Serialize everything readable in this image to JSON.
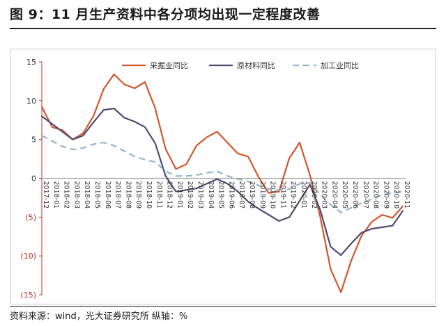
{
  "figure": {
    "title": "图 9：11 月生产资料中各分项均出现一定程度改善",
    "source": "资料来源：wind，光大证券研究所   纵轴：%"
  },
  "chart_data": {
    "type": "line",
    "title": "",
    "xlabel": "",
    "ylabel": "",
    "ylim": [
      -15,
      15
    ],
    "yticks": [
      15,
      10,
      5,
      0,
      -5,
      -10,
      -15
    ],
    "ytick_labels": [
      "15",
      "10",
      "5",
      "0",
      "(5)",
      "(10)",
      "(15)"
    ],
    "legend_position": "top",
    "categories": [
      "2017-12",
      "2018-01",
      "2018-02",
      "2018-03",
      "2018-04",
      "2018-05",
      "2018-06",
      "2018-07",
      "2018-08",
      "2018-09",
      "2018-10",
      "2018-11",
      "2018-12",
      "2019-01",
      "2019-02",
      "2019-03",
      "2019-04",
      "2019-05",
      "2019-06",
      "2019-07",
      "2019-08",
      "2019-09",
      "2019-10",
      "2019-11",
      "2019-12",
      "2020-01",
      "2020-02",
      "2020-03",
      "2020-04",
      "2020-05",
      "2020-06",
      "2020-07",
      "2020-08",
      "2020-09",
      "2020-10",
      "2020-11"
    ],
    "xtick_labels": [
      "2017-12",
      "2018-01",
      "2018-02",
      "2018-03",
      "2018-04",
      "2018-05",
      "2018-06",
      "2018-07",
      "2018-08",
      "2018-09",
      "2018-10",
      "2018-11",
      "2018-12",
      "2019-01",
      "2019-02",
      "2019-03",
      "2019-04",
      "2019-05",
      "2019-06",
      "2019-07",
      "2019-08",
      "2019-09",
      "2019-10",
      "2019-11",
      "2019-12",
      "2020-01",
      "2020-02",
      "2020-03",
      "2020-04",
      "2020-05",
      "2020-06",
      "2020-07",
      "2020-08",
      "2020-09",
      "2020-10",
      "2020-11"
    ],
    "series": [
      {
        "name": "采掘业同比",
        "color": "#d4552b",
        "style": "solid",
        "values": [
          9.2,
          6.6,
          6.2,
          5.0,
          5.8,
          8.0,
          11.5,
          13.4,
          12.1,
          11.6,
          12.4,
          9.0,
          3.8,
          1.2,
          1.8,
          4.2,
          5.3,
          6.0,
          4.6,
          3.2,
          2.8,
          0.2,
          -1.9,
          -1.7,
          2.6,
          4.6,
          0.4,
          -5.0,
          -11.7,
          -14.7,
          -10.6,
          -7.4,
          -5.6,
          -4.7,
          -5.1,
          -3.6
        ]
      },
      {
        "name": "原材料同比",
        "color": "#4b4a72",
        "style": "solid",
        "values": [
          8.0,
          7.0,
          6.0,
          5.0,
          5.5,
          7.2,
          8.8,
          9.0,
          7.8,
          7.3,
          6.6,
          4.5,
          0.3,
          -1.7,
          -1.5,
          -1.3,
          -0.7,
          -0.1,
          -0.7,
          -1.7,
          -3.0,
          -3.9,
          -4.7,
          -5.5,
          -5.0,
          -2.9,
          -0.8,
          -4.1,
          -8.8,
          -9.9,
          -8.4,
          -7.0,
          -6.5,
          -6.3,
          -6.1,
          -4.2
        ]
      },
      {
        "name": "加工业同比",
        "color": "#8eb4cf",
        "style": "dashed",
        "values": [
          5.5,
          4.8,
          4.1,
          3.7,
          3.9,
          4.4,
          4.6,
          4.2,
          3.5,
          2.8,
          2.4,
          2.1,
          0.9,
          0.3,
          0.3,
          0.4,
          0.7,
          0.9,
          0.3,
          -0.1,
          -0.4,
          -0.9,
          -1.4,
          -1.5,
          -1.4,
          -0.7,
          -0.6,
          -2.1,
          -3.4,
          -4.4,
          -3.8,
          -3.2,
          -2.7,
          -2.1,
          -1.9,
          -1.7
        ]
      }
    ],
    "grid": false
  }
}
